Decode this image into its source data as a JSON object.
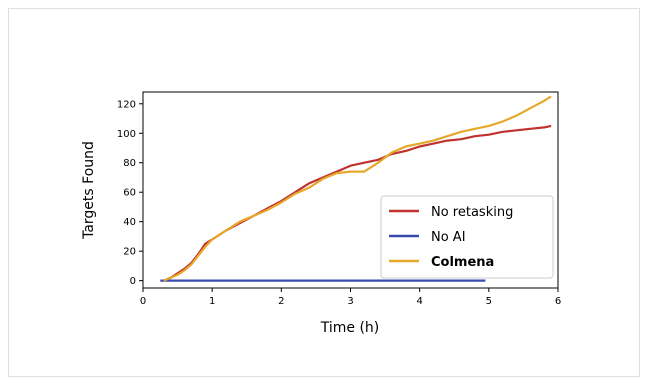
{
  "chart_data": {
    "type": "line",
    "title": "",
    "xlabel": "Time (h)",
    "ylabel": "Targets Found",
    "xlim": [
      0,
      6
    ],
    "ylim": [
      -5,
      128
    ],
    "xticks": [
      0,
      1,
      2,
      3,
      4,
      5,
      6
    ],
    "yticks": [
      0,
      20,
      40,
      60,
      80,
      100,
      120
    ],
    "grid": false,
    "legend_position": "lower-right",
    "series": [
      {
        "name": "No retasking",
        "color": "#c0322e",
        "bold": false,
        "x": [
          0.3,
          0.4,
          0.5,
          0.6,
          0.7,
          0.8,
          0.9,
          1.0,
          1.2,
          1.4,
          1.6,
          1.8,
          2.0,
          2.2,
          2.4,
          2.6,
          2.8,
          3.0,
          3.2,
          3.4,
          3.6,
          3.8,
          4.0,
          4.2,
          4.4,
          4.6,
          4.8,
          5.0,
          5.2,
          5.4,
          5.6,
          5.8,
          5.9
        ],
        "y": [
          0,
          2,
          5,
          8,
          12,
          18,
          25,
          28,
          34,
          39,
          44,
          49,
          54,
          60,
          66,
          70,
          74,
          78,
          80,
          82,
          86,
          88,
          91,
          93,
          95,
          96,
          98,
          99,
          101,
          102,
          103,
          104,
          105
        ]
      },
      {
        "name": "No AI",
        "color": "#3a4bb0",
        "bold": false,
        "x": [
          0.25,
          4.95
        ],
        "y": [
          0,
          0
        ]
      },
      {
        "name": "Colmena",
        "color": "#e6a82a",
        "bold": true,
        "x": [
          0.3,
          0.4,
          0.5,
          0.6,
          0.7,
          0.8,
          0.9,
          1.0,
          1.2,
          1.4,
          1.6,
          1.8,
          2.0,
          2.2,
          2.4,
          2.6,
          2.8,
          3.0,
          3.2,
          3.4,
          3.6,
          3.8,
          4.0,
          4.2,
          4.4,
          4.6,
          4.8,
          5.0,
          5.2,
          5.4,
          5.6,
          5.8,
          5.9
        ],
        "y": [
          0,
          2,
          4,
          7,
          11,
          17,
          23,
          28,
          34,
          40,
          44,
          48,
          53,
          59,
          63,
          69,
          73,
          74,
          74,
          80,
          87,
          91,
          93,
          95,
          98,
          101,
          103,
          105,
          108,
          112,
          117,
          122,
          125
        ]
      }
    ]
  }
}
